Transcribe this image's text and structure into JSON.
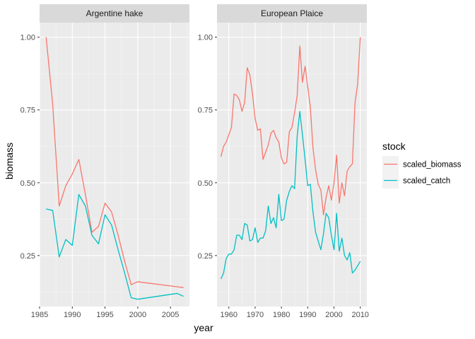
{
  "chart_data": {
    "type": "line",
    "xlabel": "year",
    "ylabel": "biomass",
    "legend": {
      "title": "stock",
      "position": "right",
      "entries": [
        {
          "label": "scaled_biomass",
          "color": "#F8766D"
        },
        {
          "label": "scaled_catch",
          "color": "#00BFC4"
        }
      ]
    },
    "grid": true,
    "shared_y": {
      "ylim": [
        0.075,
        1.05
      ],
      "ticks": [
        0.25,
        0.5,
        0.75,
        1.0
      ],
      "tick_labels": [
        "0.25",
        "0.50",
        "0.75",
        "1.00"
      ]
    },
    "panels": [
      {
        "title": "Argentine hake",
        "xlim": [
          1985.0,
          2007.9
        ],
        "xticks": [
          1985,
          1990,
          1995,
          2000,
          2005
        ],
        "xtick_labels": [
          "1985",
          "1990",
          "1995",
          "2000",
          "2005"
        ],
        "series": [
          {
            "name": "scaled_biomass",
            "color": "#F8766D",
            "x": [
              1986,
              1987,
              1988,
              1989,
              1990,
              1991,
              1992,
              1993,
              1994,
              1995,
              1996,
              1997,
              1998,
              1999,
              2000,
              2007
            ],
            "y": [
              1.0,
              0.77,
              0.42,
              0.49,
              0.53,
              0.58,
              0.46,
              0.33,
              0.35,
              0.43,
              0.4,
              0.32,
              0.23,
              0.15,
              0.16,
              0.14
            ]
          },
          {
            "name": "scaled_catch",
            "color": "#00BFC4",
            "x": [
              1986,
              1987,
              1988,
              1989,
              1990,
              1991,
              1992,
              1993,
              1994,
              1995,
              1996,
              1997,
              1998,
              1999,
              2000,
              2006,
              2007
            ],
            "y": [
              0.41,
              0.405,
              0.245,
              0.305,
              0.285,
              0.46,
              0.42,
              0.32,
              0.29,
              0.39,
              0.355,
              0.27,
              0.19,
              0.105,
              0.1,
              0.12,
              0.11
            ]
          }
        ]
      },
      {
        "title": "European Plaice",
        "xlim": [
          1955.5,
          2012.5
        ],
        "xticks": [
          1960,
          1970,
          1980,
          1990,
          2000,
          2010
        ],
        "xtick_labels": [
          "1960",
          "1970",
          "1980",
          "1990",
          "2000",
          "2010"
        ],
        "series": [
          {
            "name": "scaled_biomass",
            "color": "#F8766D",
            "x": [
              1957,
              1958,
              1959,
              1960,
              1961,
              1962,
              1963,
              1964,
              1965,
              1966,
              1967,
              1968,
              1969,
              1970,
              1971,
              1972,
              1973,
              1974,
              1975,
              1976,
              1977,
              1978,
              1979,
              1980,
              1981,
              1982,
              1983,
              1984,
              1985,
              1986,
              1987,
              1988,
              1989,
              1990,
              1991,
              1992,
              1993,
              1994,
              1995,
              1996,
              1997,
              1998,
              1999,
              2000,
              2001,
              2002,
              2003,
              2004,
              2005,
              2006,
              2007,
              2008,
              2009,
              2010
            ],
            "y": [
              0.59,
              0.625,
              0.64,
              0.665,
              0.69,
              0.805,
              0.8,
              0.785,
              0.745,
              0.775,
              0.895,
              0.87,
              0.805,
              0.72,
              0.68,
              0.685,
              0.58,
              0.605,
              0.63,
              0.67,
              0.68,
              0.655,
              0.64,
              0.585,
              0.565,
              0.57,
              0.675,
              0.69,
              0.74,
              0.8,
              0.97,
              0.845,
              0.9,
              0.83,
              0.76,
              0.62,
              0.545,
              0.495,
              0.475,
              0.39,
              0.45,
              0.49,
              0.44,
              0.5,
              0.595,
              0.43,
              0.5,
              0.455,
              0.54,
              0.555,
              0.565,
              0.775,
              0.84,
              1.0
            ]
          },
          {
            "name": "scaled_catch",
            "color": "#00BFC4",
            "x": [
              1957,
              1958,
              1959,
              1960,
              1961,
              1962,
              1963,
              1964,
              1965,
              1966,
              1967,
              1968,
              1969,
              1970,
              1971,
              1972,
              1973,
              1974,
              1975,
              1976,
              1977,
              1978,
              1979,
              1980,
              1981,
              1982,
              1983,
              1984,
              1985,
              1986,
              1987,
              1988,
              1989,
              1990,
              1991,
              1992,
              1993,
              1994,
              1995,
              1996,
              1997,
              1998,
              1999,
              2000,
              2001,
              2002,
              2003,
              2004,
              2005,
              2006,
              2007,
              2008,
              2009,
              2010
            ],
            "y": [
              0.17,
              0.19,
              0.24,
              0.255,
              0.255,
              0.27,
              0.32,
              0.32,
              0.305,
              0.36,
              0.355,
              0.3,
              0.305,
              0.345,
              0.295,
              0.31,
              0.31,
              0.335,
              0.42,
              0.36,
              0.38,
              0.345,
              0.46,
              0.37,
              0.375,
              0.44,
              0.47,
              0.49,
              0.48,
              0.66,
              0.745,
              0.665,
              0.58,
              0.49,
              0.495,
              0.4,
              0.33,
              0.3,
              0.27,
              0.325,
              0.395,
              0.38,
              0.32,
              0.27,
              0.395,
              0.265,
              0.31,
              0.25,
              0.235,
              0.26,
              0.19,
              0.2,
              0.215,
              0.23
            ]
          }
        ]
      }
    ]
  }
}
